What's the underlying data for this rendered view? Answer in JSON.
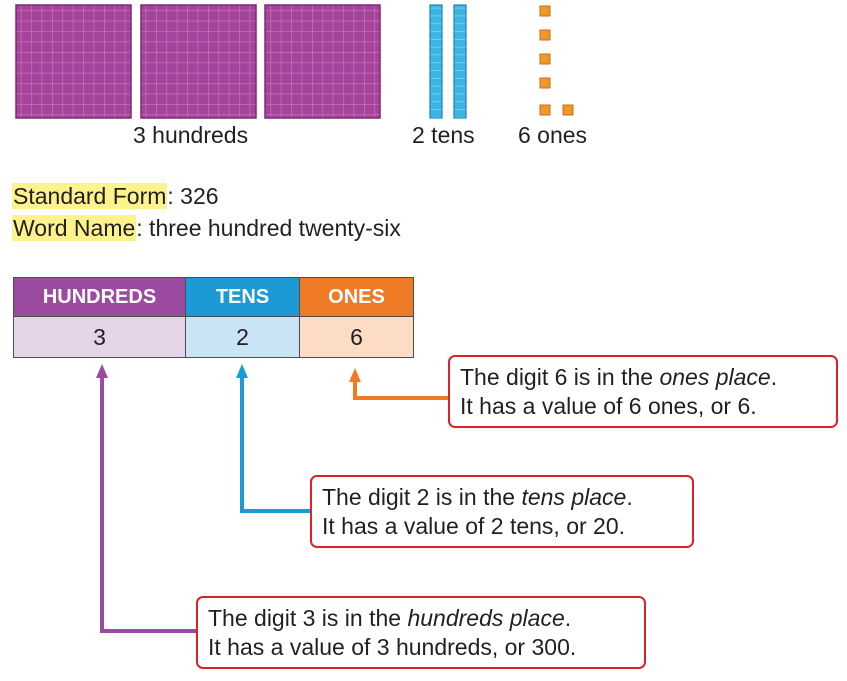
{
  "blocks": {
    "hundreds_caption": "3 hundreds",
    "tens_caption": "2 tens",
    "ones_caption": "6 ones",
    "hundreds_count": 3,
    "tens_count": 2,
    "ones_count": 6
  },
  "standard_form": {
    "label": "Standard Form",
    "value": ": 326"
  },
  "word_name": {
    "label": "Word Name",
    "value": ": three hundred twenty-six"
  },
  "place_value_table": {
    "headers": [
      "HUNDREDS",
      "TENS",
      "ONES"
    ],
    "digits": [
      "3",
      "2",
      "6"
    ]
  },
  "callouts": {
    "ones": {
      "pre": "The digit 6 is in the ",
      "place": "ones place",
      "post": ".",
      "line2": "It has a value of 6 ones, or 6."
    },
    "tens": {
      "pre": "The digit 2 is in the ",
      "place": "tens place",
      "post": ".",
      "line2": "It has a value of 2 tens, or 20."
    },
    "hundreds": {
      "pre": "The digit 3 is in the ",
      "place": "hundreds place",
      "post": ".",
      "line2": "It has a value of 3 hundreds, or 300."
    }
  },
  "colors": {
    "hundreds": "#9a4a9f",
    "hundreds_light": "#e4d4e8",
    "tens": "#1c9ad6",
    "tens_light": "#c9e4f5",
    "ones": "#ef7a25",
    "ones_light": "#fcdcc4",
    "callout_border": "#d8232a",
    "highlight": "#fdf38c",
    "flat_block": "#a6449b",
    "rod_block": "#3db5e2",
    "unit_block": "#f0992b"
  }
}
